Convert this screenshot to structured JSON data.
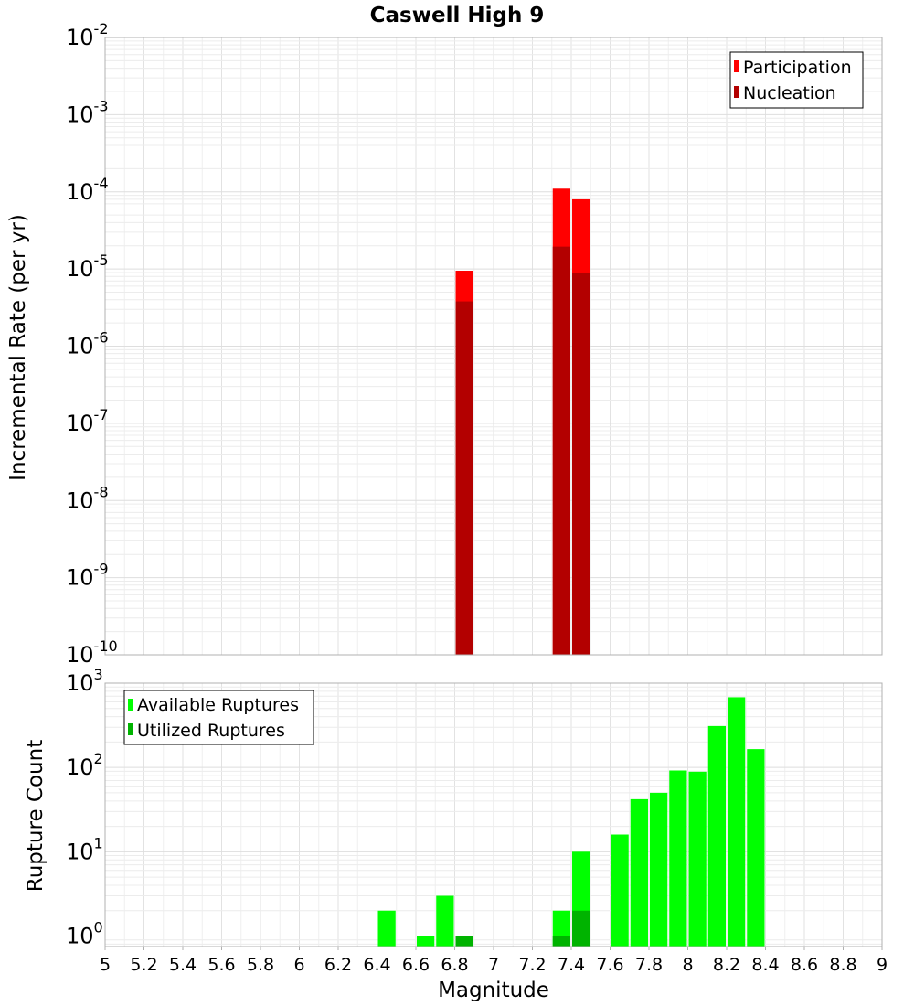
{
  "chart_data": [
    {
      "type": "bar",
      "title": "Caswell High 9",
      "ylabel": "Incremental Rate (per yr)",
      "yscale": "log",
      "ylim": [
        1e-10,
        0.01
      ],
      "xlim": [
        5,
        9
      ],
      "grid": true,
      "legend_position": "top-right",
      "ytick_exponents": [
        "-10",
        "-9",
        "-8",
        "-7",
        "-6",
        "-5",
        "-4",
        "-3",
        "-2"
      ],
      "ytick_base": "10",
      "bin_width": 0.1,
      "series": [
        {
          "name": "Participation",
          "color": "#ff0000",
          "points": [
            {
              "x": 6.85,
              "y": 9.5e-06
            },
            {
              "x": 7.35,
              "y": 0.00011
            },
            {
              "x": 7.45,
              "y": 8e-05
            }
          ]
        },
        {
          "name": "Nucleation",
          "color": "#b30000",
          "points": [
            {
              "x": 6.85,
              "y": 3.8e-06
            },
            {
              "x": 7.35,
              "y": 1.95e-05
            },
            {
              "x": 7.45,
              "y": 9e-06
            }
          ]
        }
      ]
    },
    {
      "type": "bar",
      "xlabel": "Magnitude",
      "ylabel": "Rupture Count",
      "yscale": "log",
      "ylim": [
        0.75,
        1000
      ],
      "xlim": [
        5,
        9
      ],
      "grid": true,
      "legend_position": "top-left",
      "ytick_exponents": [
        "0",
        "1",
        "2",
        "3"
      ],
      "ytick_base": "10",
      "xtick_labels": [
        "5",
        "5.2",
        "5.4",
        "5.6",
        "5.8",
        "6",
        "6.2",
        "6.4",
        "6.6",
        "6.8",
        "7",
        "7.2",
        "7.4",
        "7.6",
        "7.8",
        "8",
        "8.2",
        "8.4",
        "8.6",
        "8.8",
        "9"
      ],
      "bin_width": 0.1,
      "series": [
        {
          "name": "Available Ruptures",
          "color": "#00ff00",
          "points": [
            {
              "x": 6.45,
              "y": 2
            },
            {
              "x": 6.65,
              "y": 1
            },
            {
              "x": 6.75,
              "y": 3
            },
            {
              "x": 6.85,
              "y": 1
            },
            {
              "x": 7.35,
              "y": 2
            },
            {
              "x": 7.45,
              "y": 10
            },
            {
              "x": 7.65,
              "y": 16
            },
            {
              "x": 7.75,
              "y": 42
            },
            {
              "x": 7.85,
              "y": 50
            },
            {
              "x": 7.95,
              "y": 92
            },
            {
              "x": 8.05,
              "y": 89
            },
            {
              "x": 8.15,
              "y": 310
            },
            {
              "x": 8.25,
              "y": 680
            },
            {
              "x": 8.35,
              "y": 165
            }
          ]
        },
        {
          "name": "Utilized Ruptures",
          "color": "#00b300",
          "points": [
            {
              "x": 6.85,
              "y": 1
            },
            {
              "x": 7.35,
              "y": 1
            },
            {
              "x": 7.45,
              "y": 2
            }
          ]
        }
      ]
    }
  ]
}
